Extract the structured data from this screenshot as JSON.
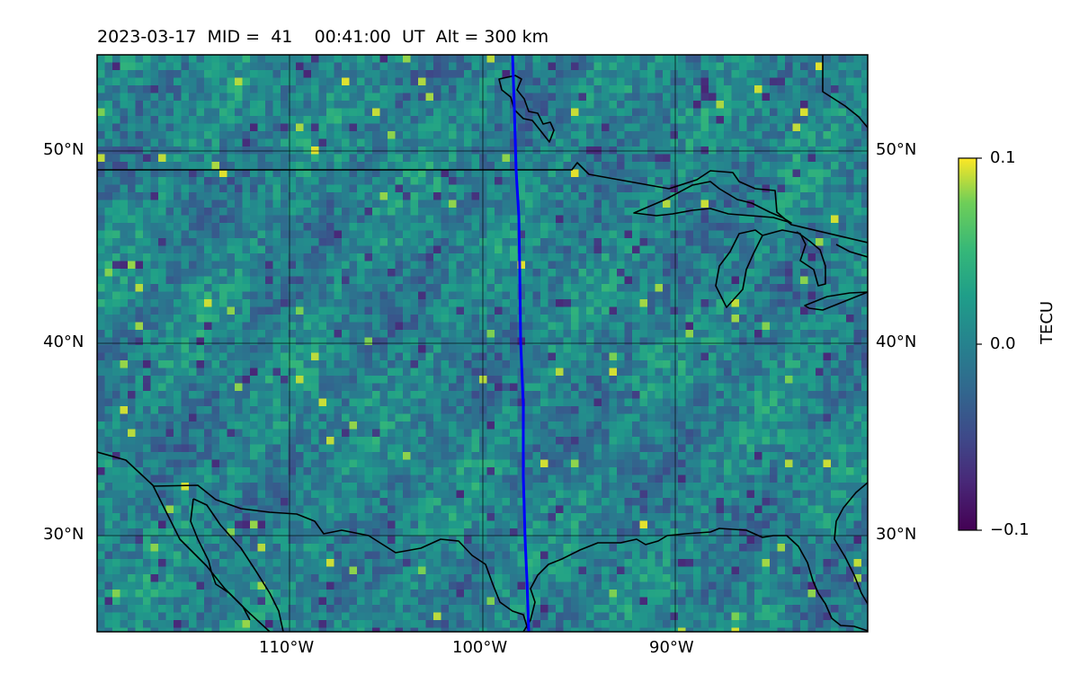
{
  "title": {
    "date": "2023-03-17",
    "mid_label": "MID =",
    "mid_value": "41",
    "time": "00:41:00",
    "time_unit": "UT",
    "alt_label": "Alt = 300 km"
  },
  "map": {
    "lon_ticks": [
      "110°W",
      "100°W",
      "90°W"
    ],
    "lat_ticks": [
      "50°N",
      "40°N",
      "30°N"
    ],
    "track_color": "#0000ff",
    "coastline_color": "#000000",
    "extent": {
      "lon": [
        -120,
        -80
      ],
      "lat": [
        25,
        55
      ]
    }
  },
  "colorbar": {
    "title": "TECU",
    "colormap": "viridis",
    "max_label": "0.1",
    "mid_label": "0.0",
    "min_label": "−0.1",
    "range": [
      -0.1,
      0.1
    ]
  }
}
